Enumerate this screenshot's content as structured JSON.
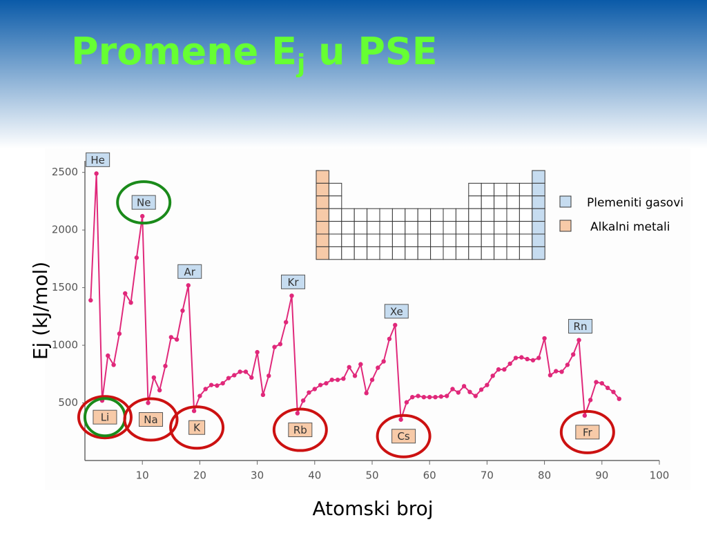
{
  "chart_data": {
    "type": "line",
    "title": {
      "main": "Promene E",
      "subscript": "j",
      "rest": " u PSE"
    },
    "x_label": "Atomski broj",
    "y_label": "Ej (kJ/mol)",
    "x": [
      1,
      2,
      3,
      4,
      5,
      6,
      7,
      8,
      9,
      10,
      11,
      12,
      13,
      14,
      15,
      16,
      17,
      18,
      19,
      20,
      21,
      22,
      23,
      24,
      25,
      26,
      27,
      28,
      29,
      30,
      31,
      32,
      33,
      34,
      35,
      36,
      37,
      38,
      39,
      40,
      41,
      42,
      43,
      44,
      45,
      46,
      47,
      48,
      49,
      50,
      51,
      52,
      53,
      54,
      55,
      56,
      57,
      58,
      59,
      60,
      61,
      62,
      63,
      64,
      65,
      66,
      67,
      68,
      69,
      70,
      71,
      72,
      73,
      74,
      75,
      76,
      77,
      78,
      79,
      80,
      81,
      82,
      83,
      84,
      85,
      86,
      87,
      88,
      89,
      90,
      91,
      92,
      93
    ],
    "series": [
      {
        "color": "#e0287a",
        "values": [
          1390,
          2490,
          520,
          910,
          830,
          1100,
          1450,
          1370,
          1760,
          2120,
          500,
          720,
          610,
          820,
          1070,
          1050,
          1300,
          1520,
          430,
          560,
          620,
          655,
          650,
          670,
          715,
          740,
          770,
          770,
          720,
          940,
          570,
          735,
          985,
          1010,
          1200,
          1430,
          410,
          520,
          590,
          620,
          655,
          670,
          700,
          700,
          710,
          810,
          735,
          835,
          585,
          700,
          805,
          860,
          1055,
          1175,
          355,
          505,
          550,
          560,
          550,
          550,
          550,
          555,
          560,
          620,
          590,
          645,
          595,
          560,
          615,
          655,
          735,
          790,
          790,
          840,
          890,
          895,
          880,
          870,
          890,
          1060,
          740,
          775,
          770,
          830,
          920,
          1045,
          390,
          525,
          680,
          670,
          630,
          595,
          535
        ]
      }
    ],
    "xlim": [
      0,
      100
    ],
    "xticks": [
      10,
      20,
      30,
      40,
      50,
      60,
      70,
      80,
      90,
      100
    ],
    "ylim": [
      0,
      2600
    ],
    "yticks": [
      500,
      1000,
      1500,
      2000,
      2500
    ],
    "legend": [
      {
        "name": "Plemeniti gasovi",
        "color": "#c6dcf0"
      },
      {
        "name": "Alkalni metali",
        "color": "#f7caa8"
      }
    ],
    "noble_gas_labels": [
      {
        "text": "He",
        "x": 2
      },
      {
        "text": "Ne",
        "x": 10
      },
      {
        "text": "Ar",
        "x": 18
      },
      {
        "text": "Kr",
        "x": 36
      },
      {
        "text": "Xe",
        "x": 54
      },
      {
        "text": "Rn",
        "x": 86
      }
    ],
    "alkali_labels": [
      {
        "text": "Li",
        "x": 3
      },
      {
        "text": "Na",
        "x": 11
      },
      {
        "text": "K",
        "x": 19
      },
      {
        "text": "Rb",
        "x": 37
      },
      {
        "text": "Cs",
        "x": 55
      },
      {
        "text": "Fr",
        "x": 87
      }
    ]
  }
}
